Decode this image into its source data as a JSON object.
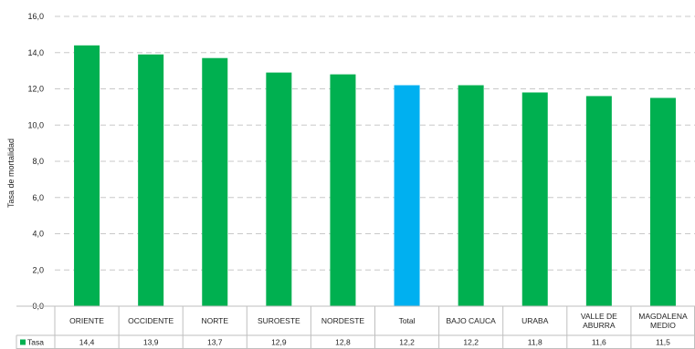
{
  "chart_data": {
    "type": "bar",
    "title": "",
    "xlabel": "",
    "ylabel": "Tasa de mortalidad",
    "ylim": [
      0,
      16
    ],
    "yticks": [
      "0,0",
      "2,0",
      "4,0",
      "6,0",
      "8,0",
      "10,0",
      "12,0",
      "14,0",
      "16,0"
    ],
    "grid": true,
    "legend": "bottom-left",
    "categories": [
      [
        "ORIENTE"
      ],
      [
        "OCCIDENTE"
      ],
      [
        "NORTE"
      ],
      [
        "SUROESTE"
      ],
      [
        "NORDESTE"
      ],
      [
        "Total"
      ],
      [
        "BAJO CAUCA"
      ],
      [
        "URABA"
      ],
      [
        "VALLE DE",
        "ABURRA"
      ],
      [
        "MAGDALENA",
        "MEDIO"
      ]
    ],
    "series": [
      {
        "name": "Tasa",
        "values": [
          14.4,
          13.9,
          13.7,
          12.9,
          12.8,
          12.2,
          12.2,
          11.8,
          11.6,
          11.5
        ],
        "labels": [
          "14,4",
          "13,9",
          "13,7",
          "12,9",
          "12,8",
          "12,2",
          "12,2",
          "11,8",
          "11,6",
          "11,5"
        ]
      }
    ],
    "colors": {
      "bar": "#00b050",
      "highlight": "#00b0f0",
      "grid": "#c8c8c8",
      "table_border": "#bfbfbf"
    },
    "highlight_category": "Total"
  }
}
